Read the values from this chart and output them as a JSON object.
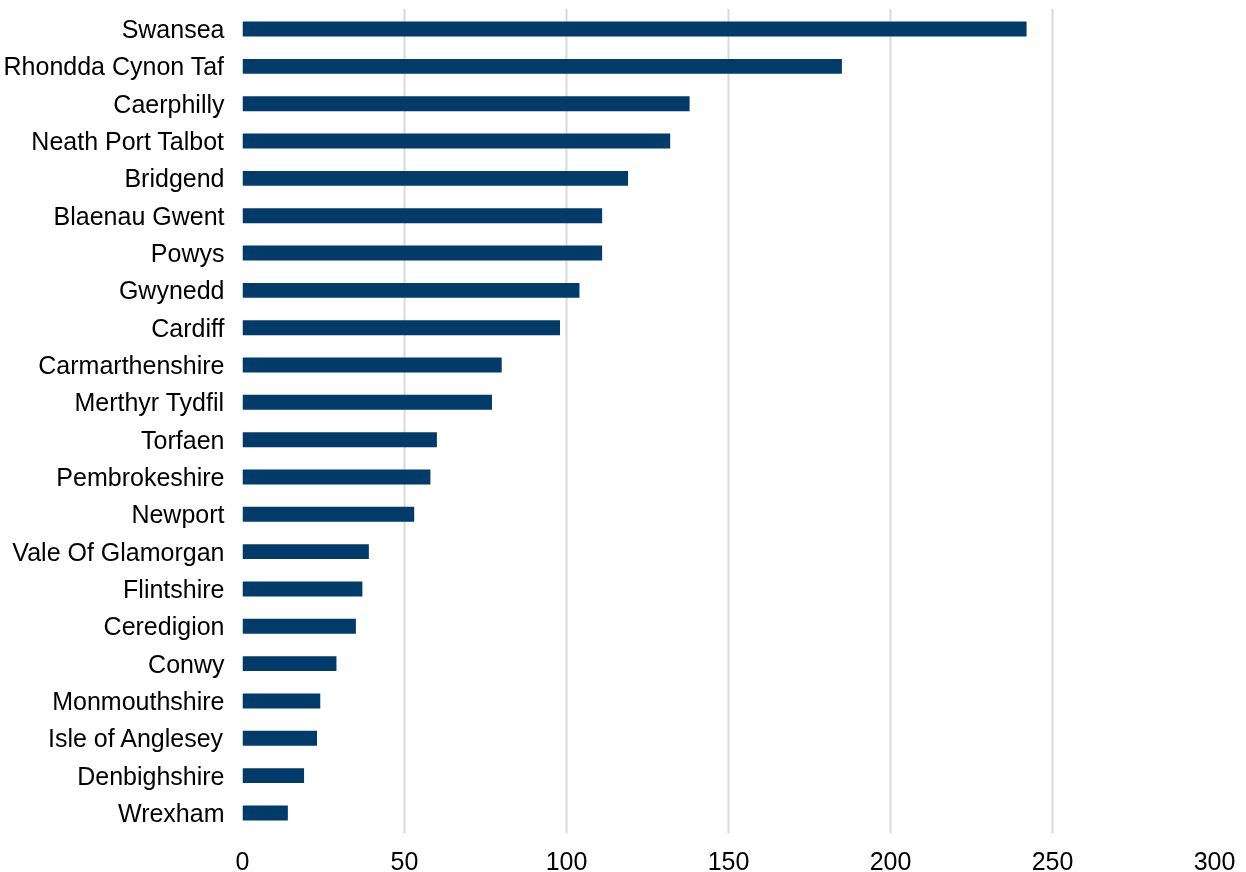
{
  "chart_data": {
    "type": "bar",
    "orientation": "horizontal",
    "categories": [
      "Swansea",
      "Rhondda Cynon Taf",
      "Caerphilly",
      "Neath Port Talbot",
      "Bridgend",
      "Blaenau Gwent",
      "Powys",
      "Gwynedd",
      "Cardiff",
      "Carmarthenshire",
      "Merthyr Tydfil",
      "Torfaen",
      "Pembrokeshire",
      "Newport",
      "Vale Of Glamorgan",
      "Flintshire",
      "Ceredigion",
      "Conwy",
      "Monmouthshire",
      "Isle of Anglesey",
      "Denbighshire",
      "Wrexham"
    ],
    "values": [
      242,
      185,
      138,
      132,
      119,
      111,
      111,
      104,
      98,
      80,
      77,
      60,
      58,
      53,
      39,
      37,
      35,
      29,
      24,
      23,
      19,
      14
    ],
    "color": "#003b6a",
    "xlim": [
      0,
      300
    ],
    "xticks": [
      0,
      50,
      100,
      150,
      200,
      250,
      300
    ],
    "grid": "x"
  }
}
